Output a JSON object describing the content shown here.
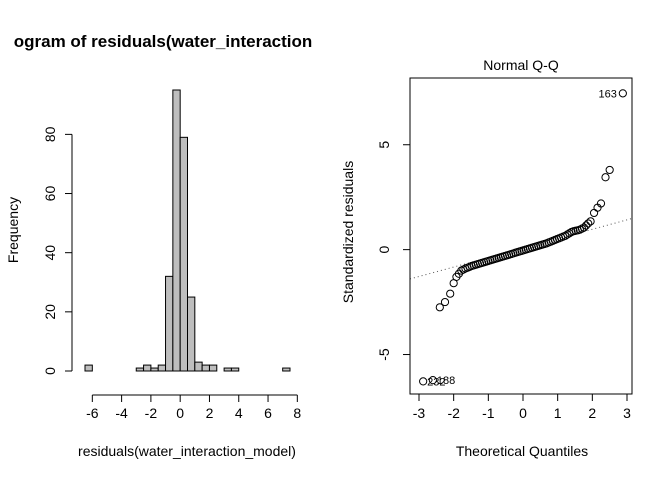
{
  "chart_data": [
    {
      "type": "bar",
      "title": "ogram of residuals(water_interaction",
      "xlabel": "residuals(water_interaction_model)",
      "ylabel": "Frequency",
      "bin_width": 0.5,
      "bin_starts": [
        -6.5,
        -6,
        -5.5,
        -5,
        -4.5,
        -4,
        -3.5,
        -3,
        -2.5,
        -2,
        -1.5,
        -1,
        -0.5,
        0,
        0.5,
        1,
        1.5,
        2,
        2.5,
        3,
        3.5,
        4,
        4.5,
        5,
        5.5,
        6,
        6.5,
        7
      ],
      "values": [
        2,
        0,
        0,
        0,
        0,
        0,
        0,
        1,
        2,
        1,
        2,
        32,
        95,
        79,
        25,
        3,
        2,
        2,
        0,
        1,
        1,
        0,
        0,
        0,
        0,
        0,
        0,
        1
      ],
      "xlim": [
        -6.5,
        7.5
      ],
      "ylim": [
        0,
        95
      ],
      "x_ticks": [
        -6,
        -4,
        -2,
        0,
        2,
        4,
        6,
        8
      ],
      "y_ticks": [
        0,
        20,
        40,
        60,
        80
      ],
      "bar_fill": "#bebebe"
    },
    {
      "type": "scatter",
      "title": "Normal Q-Q",
      "xlabel": "Theoretical Quantiles",
      "ylabel": "Standardized residuals",
      "xlim": [
        -3,
        3
      ],
      "ylim": [
        -6.5,
        7.8
      ],
      "x_ticks": [
        -3,
        -2,
        -1,
        0,
        1,
        2,
        3
      ],
      "y_ticks": [
        -5,
        0,
        5
      ],
      "reference_line": {
        "intercept": 0.07,
        "slope": 0.45
      },
      "outlier_labels": [
        {
          "text": "163",
          "x": 2.88,
          "y": 7.45
        },
        {
          "text": "232",
          "x": -2.88,
          "y": -6.28
        },
        {
          "text": "188",
          "x": -2.6,
          "y": -6.22
        }
      ],
      "points": [
        [
          -2.88,
          -6.28
        ],
        [
          -2.6,
          -6.22
        ],
        [
          -2.4,
          -2.75
        ],
        [
          -2.25,
          -2.5
        ],
        [
          -2.1,
          -2.1
        ],
        [
          -2.0,
          -1.6
        ],
        [
          -1.92,
          -1.3
        ],
        [
          -1.85,
          -1.15
        ],
        [
          -1.78,
          -1.0
        ],
        [
          -1.72,
          -0.95
        ],
        [
          -1.66,
          -0.9
        ],
        [
          -1.6,
          -0.86
        ],
        [
          -1.54,
          -0.82
        ],
        [
          -1.48,
          -0.78
        ],
        [
          -1.42,
          -0.75
        ],
        [
          -1.36,
          -0.72
        ],
        [
          -1.3,
          -0.69
        ],
        [
          -1.24,
          -0.66
        ],
        [
          -1.18,
          -0.63
        ],
        [
          -1.12,
          -0.6
        ],
        [
          -1.06,
          -0.57
        ],
        [
          -1.0,
          -0.54
        ],
        [
          -0.94,
          -0.51
        ],
        [
          -0.88,
          -0.48
        ],
        [
          -0.82,
          -0.45
        ],
        [
          -0.76,
          -0.42
        ],
        [
          -0.7,
          -0.39
        ],
        [
          -0.64,
          -0.36
        ],
        [
          -0.58,
          -0.33
        ],
        [
          -0.52,
          -0.3
        ],
        [
          -0.46,
          -0.27
        ],
        [
          -0.4,
          -0.24
        ],
        [
          -0.34,
          -0.21
        ],
        [
          -0.28,
          -0.18
        ],
        [
          -0.22,
          -0.15
        ],
        [
          -0.16,
          -0.12
        ],
        [
          -0.1,
          -0.09
        ],
        [
          -0.04,
          -0.06
        ],
        [
          0.02,
          -0.03
        ],
        [
          0.08,
          0.0
        ],
        [
          0.14,
          0.03
        ],
        [
          0.2,
          0.06
        ],
        [
          0.26,
          0.09
        ],
        [
          0.32,
          0.12
        ],
        [
          0.38,
          0.15
        ],
        [
          0.44,
          0.18
        ],
        [
          0.5,
          0.21
        ],
        [
          0.56,
          0.24
        ],
        [
          0.62,
          0.27
        ],
        [
          0.68,
          0.3
        ],
        [
          0.74,
          0.34
        ],
        [
          0.8,
          0.38
        ],
        [
          0.86,
          0.42
        ],
        [
          0.92,
          0.46
        ],
        [
          0.98,
          0.5
        ],
        [
          1.04,
          0.54
        ],
        [
          1.1,
          0.58
        ],
        [
          1.16,
          0.62
        ],
        [
          1.22,
          0.66
        ],
        [
          1.28,
          0.72
        ],
        [
          1.34,
          0.78
        ],
        [
          1.4,
          0.84
        ],
        [
          1.46,
          0.88
        ],
        [
          1.52,
          0.9
        ],
        [
          1.58,
          0.92
        ],
        [
          1.64,
          0.95
        ],
        [
          1.7,
          1.0
        ],
        [
          1.76,
          1.05
        ],
        [
          1.82,
          1.15
        ],
        [
          1.88,
          1.25
        ],
        [
          1.95,
          1.35
        ],
        [
          2.05,
          1.75
        ],
        [
          2.15,
          2.0
        ],
        [
          2.25,
          2.2
        ],
        [
          2.38,
          3.45
        ],
        [
          2.5,
          3.8
        ],
        [
          2.88,
          7.45
        ]
      ]
    }
  ]
}
